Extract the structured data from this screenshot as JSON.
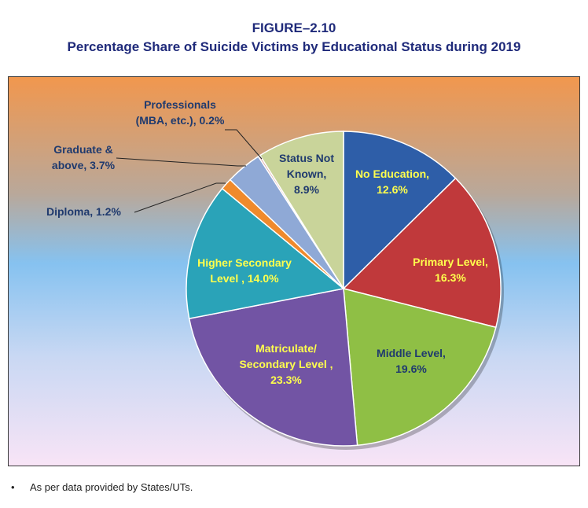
{
  "figure": {
    "label": "FIGURE–2.10",
    "title": "Percentage Share of Suicide Victims by Educational Status during 2019"
  },
  "chart_data": {
    "type": "pie",
    "title": "Percentage Share of Suicide Victims by Educational Status during 2019",
    "unit": "%",
    "slices": [
      {
        "name": "No Education",
        "value": 12.6,
        "color": "#2e5ea8",
        "label_lines": [
          "No Education,",
          "12.6%"
        ],
        "label_color": "#ffff4d"
      },
      {
        "name": "Primary Level",
        "value": 16.3,
        "color": "#c0393b",
        "label_lines": [
          "Primary Level,",
          "16.3%"
        ],
        "label_color": "#ffff4d"
      },
      {
        "name": "Middle Level",
        "value": 19.6,
        "color": "#8fbf45",
        "label_lines": [
          "Middle Level,",
          "19.6%"
        ],
        "label_color": "#1f3a6e"
      },
      {
        "name": "Matriculate/ Secondary Level",
        "value": 23.3,
        "color": "#7254a4",
        "label_lines": [
          "Matriculate/",
          "Secondary Level ,",
          "23.3%"
        ],
        "label_color": "#ffff4d"
      },
      {
        "name": "Higher Secondary Level",
        "value": 14.0,
        "color": "#2aa3b8",
        "label_lines": [
          "Higher Secondary",
          "Level , 14.0%"
        ],
        "label_color": "#ffff4d"
      },
      {
        "name": "Diploma",
        "value": 1.2,
        "color": "#f08a2c",
        "label_lines": [
          "Diploma, 1.2%"
        ],
        "label_color": "#1f3a6e"
      },
      {
        "name": "Graduate & above",
        "value": 3.7,
        "color": "#8fa9d6",
        "label_lines": [
          "Graduate &",
          "above, 3.7%"
        ],
        "label_color": "#1f3a6e"
      },
      {
        "name": "Professionals (MBA, etc.)",
        "value": 0.2,
        "color": "#d6a0a0",
        "label_lines": [
          "Professionals",
          "(MBA, etc.), 0.2%"
        ],
        "label_color": "#1f3a6e"
      },
      {
        "name": "Status Not Known",
        "value": 8.9,
        "color": "#c9d49a",
        "label_lines": [
          "Status Not",
          "Known,",
          "8.9%"
        ],
        "label_color": "#1f3a6e"
      }
    ],
    "start_angle_deg": 0,
    "direction": "clockwise"
  },
  "footnote": "As per data provided by States/UTs."
}
